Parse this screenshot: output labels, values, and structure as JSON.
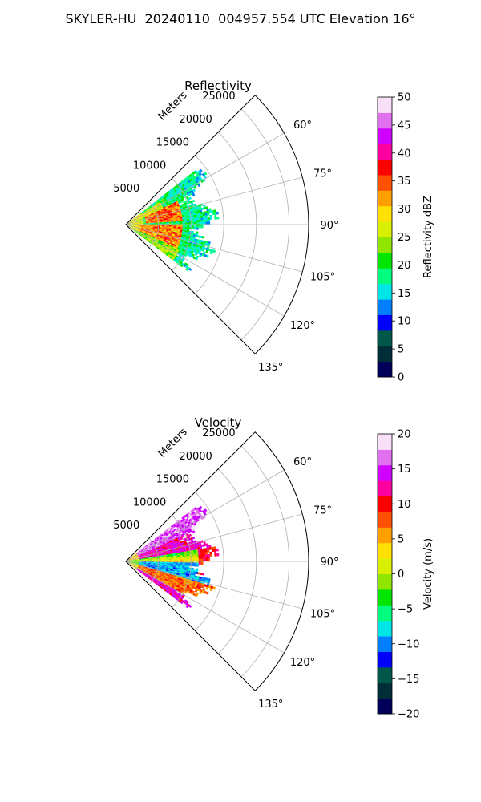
{
  "figure": {
    "suptitle": "SKYLER-HU  20240110  004957.554 UTC Elevation 16°"
  },
  "chart_data": [
    {
      "type": "polar-sector-heatmap",
      "title": "Reflectivity",
      "r_axis_label": "Meters",
      "r_range": [
        0,
        28000
      ],
      "r_ticks": [
        5000,
        10000,
        15000,
        20000,
        25000
      ],
      "r_tick_labels": [
        "5000",
        "10000",
        "15000",
        "20000",
        "25000"
      ],
      "theta_range_deg": [
        45,
        135
      ],
      "theta_ticks_deg": [
        60,
        75,
        90,
        105,
        120,
        135
      ],
      "theta_tick_labels": [
        "60°",
        "75°",
        "90°",
        "105°",
        "120°",
        "135°"
      ],
      "grid": true,
      "data_extent": {
        "theta_deg": [
          52,
          127
        ],
        "r_max_approx_m": 14000
      },
      "colorbar": {
        "label": "Reflectivity dBZ",
        "range": [
          0,
          50
        ],
        "ticks": [
          0,
          5,
          10,
          15,
          20,
          25,
          30,
          35,
          40,
          45,
          50
        ],
        "tick_labels": [
          "0",
          "5",
          "10",
          "15",
          "20",
          "25",
          "30",
          "35",
          "40",
          "45",
          "50"
        ],
        "colors": [
          "#00005a",
          "#002f3a",
          "#00584a",
          "#0000ff",
          "#0080ff",
          "#00e6e6",
          "#00ff80",
          "#00e600",
          "#90e600",
          "#d8f000",
          "#ffe000",
          "#ffa000",
          "#ff5000",
          "#ff0000",
          "#ff00a0",
          "#d000ff",
          "#e070f0",
          "#f8e0f8"
        ]
      },
      "field_summary": [
        {
          "sector_deg": [
            52,
            127
          ],
          "r_m": [
            0,
            3000
          ],
          "dbz": 27
        },
        {
          "sector_deg": [
            65,
            85
          ],
          "r_m": [
            3000,
            9000
          ],
          "dbz": 33
        },
        {
          "sector_deg": [
            90,
            112
          ],
          "r_m": [
            2000,
            8000
          ],
          "dbz": 34
        },
        {
          "sector_deg": [
            55,
            125
          ],
          "r_m": [
            9000,
            14000
          ],
          "dbz": 19
        }
      ]
    },
    {
      "type": "polar-sector-heatmap",
      "title": "Velocity",
      "r_axis_label": "Meters",
      "r_range": [
        0,
        28000
      ],
      "r_ticks": [
        5000,
        10000,
        15000,
        20000,
        25000
      ],
      "r_tick_labels": [
        "5000",
        "10000",
        "15000",
        "20000",
        "25000"
      ],
      "theta_range_deg": [
        45,
        135
      ],
      "theta_ticks_deg": [
        60,
        75,
        90,
        105,
        120,
        135
      ],
      "theta_tick_labels": [
        "60°",
        "75°",
        "90°",
        "105°",
        "120°",
        "135°"
      ],
      "grid": true,
      "data_extent": {
        "theta_deg": [
          52,
          127
        ],
        "r_max_approx_m": 14000
      },
      "colorbar": {
        "label": "Velocity (m/s)",
        "range": [
          -20,
          20
        ],
        "ticks": [
          -20,
          -15,
          -10,
          -5,
          0,
          5,
          10,
          15,
          20
        ],
        "tick_labels": [
          "−20",
          "−15",
          "−10",
          "−5",
          "0",
          "5",
          "10",
          "15",
          "20"
        ],
        "colors": [
          "#00005a",
          "#002f3a",
          "#00584a",
          "#0000ff",
          "#0080ff",
          "#00e6e6",
          "#00ff80",
          "#00e600",
          "#90e600",
          "#d8f000",
          "#ffe000",
          "#ffa000",
          "#ff5000",
          "#ff0000",
          "#ff00a0",
          "#d000ff",
          "#e070f0",
          "#f8e0f8"
        ]
      },
      "field_summary": [
        {
          "sector_deg": [
            52,
            80
          ],
          "r_m": [
            0,
            14000
          ],
          "ms": 13
        },
        {
          "sector_deg": [
            80,
            92
          ],
          "r_m": [
            0,
            14000
          ],
          "ms": 0
        },
        {
          "sector_deg": [
            92,
            108
          ],
          "r_m": [
            0,
            14000
          ],
          "ms": -9
        },
        {
          "sector_deg": [
            108,
            127
          ],
          "r_m": [
            0,
            14000
          ],
          "ms": 7
        }
      ]
    }
  ]
}
